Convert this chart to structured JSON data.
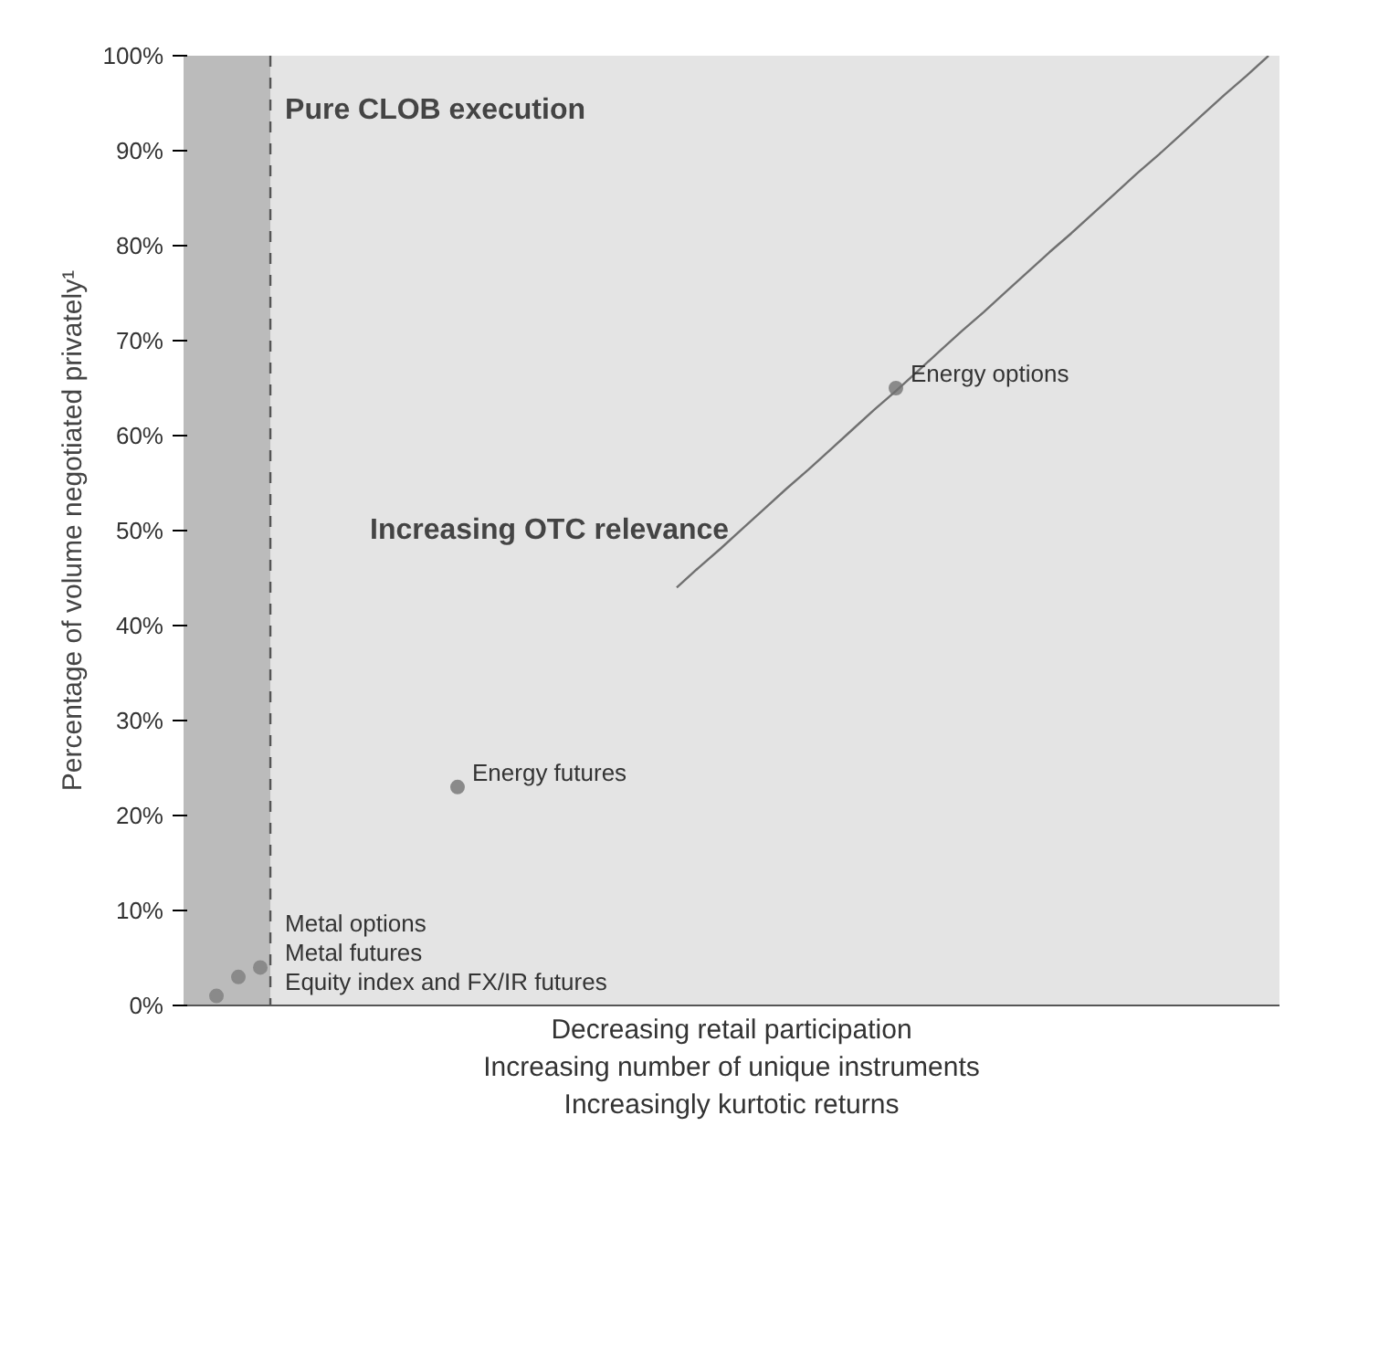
{
  "chart_data": {
    "type": "scatter",
    "ylabel": "Percentage of volume negotiated privately¹",
    "xlabel": "Decreasing retail participation\nIncreasing number of unique instruments\nIncreasingly kurtotic returns",
    "categories": [
      null,
      null,
      null,
      null,
      null,
      null,
      null,
      null,
      null,
      null,
      null,
      null,
      null,
      null,
      null,
      null,
      null,
      null,
      null,
      null,
      null,
      null,
      null,
      null,
      null,
      null,
      null,
      null,
      null,
      null,
      null,
      null,
      null,
      null,
      null,
      null,
      null,
      null,
      null,
      null,
      null,
      null,
      null,
      null,
      null,
      null,
      null,
      null,
      null,
      null
    ],
    "ylim": [
      0,
      100
    ],
    "yticks": [
      {
        "value": 0,
        "label": "0%"
      },
      {
        "value": 10,
        "label": "10%"
      },
      {
        "value": 20,
        "label": "20%"
      },
      {
        "value": 30,
        "label": "30%"
      },
      {
        "value": 40,
        "label": "40%"
      },
      {
        "value": 50,
        "label": "50%"
      },
      {
        "value": 60,
        "label": "60%"
      },
      {
        "value": 70,
        "label": "70%"
      },
      {
        "value": 80,
        "label": "80%"
      },
      {
        "value": 90,
        "label": "90%"
      },
      {
        "value": 100,
        "label": "100%"
      }
    ],
    "tick_labels": "y",
    "marker": "circle",
    "series": [
      {
        "color": "#8a8a8a",
        "values": [
          null,
          1,
          3,
          4,
          null,
          null,
          null,
          null,
          null,
          null,
          null,
          null,
          23,
          null,
          null,
          null,
          null,
          null,
          null,
          null,
          null,
          null,
          null,
          null,
          null,
          null,
          null,
          null,
          null,
          null,
          null,
          null,
          65,
          null,
          null,
          null,
          null,
          null,
          null,
          null,
          null,
          null,
          null,
          null,
          null,
          null,
          null,
          null,
          null,
          null
        ]
      },
      {
        "type": "line",
        "marker": "none",
        "color": "#707070",
        "values": [
          null,
          null,
          null,
          null,
          null,
          null,
          null,
          null,
          null,
          null,
          null,
          null,
          null,
          null,
          null,
          null,
          null,
          null,
          null,
          null,
          null,
          null,
          44.0,
          46.1,
          48.1,
          50.2,
          52.3,
          54.4,
          56.4,
          58.5,
          60.6,
          62.7,
          64.7,
          66.8,
          68.9,
          71.0,
          73.0,
          75.1,
          77.2,
          79.3,
          81.3,
          83.4,
          85.5,
          87.6,
          89.6,
          91.7,
          93.8,
          95.9,
          97.9,
          100.0
        ]
      }
    ],
    "annotations": [
      "Equity index and FX/IR futures",
      "Metal futures",
      "Metal options",
      "Energy futures",
      "Energy options",
      "Pure CLOB execution",
      "Increasing OTC relevance"
    ]
  }
}
